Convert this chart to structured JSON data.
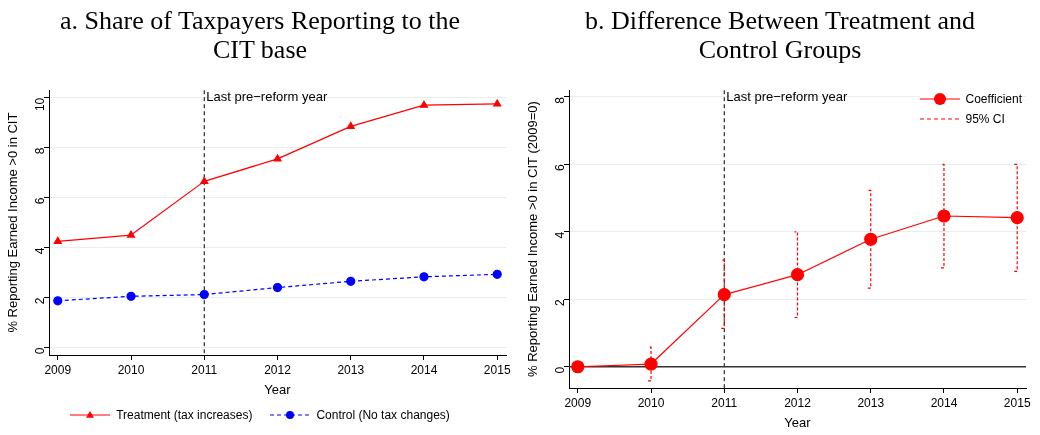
{
  "chart_data": [
    {
      "type": "line",
      "title": "a. Share of Taxpayers Reporting to the CIT base",
      "xlabel": "Year",
      "ylabel": "% Reporting Earned Income >0 in CIT",
      "x": [
        2009,
        2010,
        2011,
        2012,
        2013,
        2014,
        2015
      ],
      "series": [
        {
          "name": "Treatment (tax increases)",
          "color": "#ff0000",
          "values": [
            4.25,
            4.5,
            6.65,
            7.55,
            8.85,
            9.7,
            9.75
          ],
          "marker": "triangle",
          "line_style": "solid"
        },
        {
          "name": "Control (No tax changes)",
          "color": "#0000ff",
          "values": [
            1.87,
            2.05,
            2.12,
            2.4,
            2.65,
            2.83,
            2.93
          ],
          "marker": "circle",
          "line_style": "dashed"
        }
      ],
      "xlim": [
        2008.88,
        2015.12
      ],
      "xticks": [
        2009,
        2010,
        2011,
        2012,
        2013,
        2014,
        2015
      ],
      "ylim": [
        -0.3,
        10.3
      ],
      "yticks": [
        0,
        2,
        4,
        6,
        8,
        10
      ],
      "grid": "y",
      "legend": "bottom",
      "ref_lines": [
        {
          "axis": "x",
          "value": 2011,
          "label": "Last pre−reform year",
          "color": "#000000",
          "line_style": "dashed"
        }
      ]
    },
    {
      "type": "line",
      "title": "b. Difference Between Treatment and Control Groups",
      "xlabel": "Year",
      "ylabel": "% Reporting Earned Income >0 in CIT (2009=0)",
      "x": [
        2009,
        2010,
        2011,
        2012,
        2013,
        2014,
        2015
      ],
      "series": [
        {
          "name": "Coefficient",
          "color": "#ff0000",
          "values": [
            0,
            0.08,
            2.14,
            2.73,
            3.78,
            4.47,
            4.42
          ],
          "marker": "circle",
          "line_style": "solid",
          "errors": [
            null,
            [
              -0.42,
              0.58
            ],
            [
              1.14,
              3.16
            ],
            [
              1.46,
              4.0
            ],
            [
              2.33,
              5.23
            ],
            [
              2.93,
              6.0
            ],
            [
              2.83,
              6.0
            ]
          ]
        }
      ],
      "annotations": [
        "95% CI"
      ],
      "xlim": [
        2008.88,
        2015.12
      ],
      "xticks": [
        2009,
        2010,
        2011,
        2012,
        2013,
        2014,
        2015
      ],
      "ylim": [
        -0.63,
        8.2
      ],
      "yticks": [
        0,
        2,
        4,
        6,
        8
      ],
      "grid": "y",
      "legend": "top right",
      "ref_lines": [
        {
          "axis": "x",
          "value": 2011,
          "label": "Last pre−reform year",
          "color": "#000000",
          "line_style": "dashed"
        },
        {
          "axis": "y",
          "value": 0,
          "color": "#333333",
          "line_style": "solid"
        }
      ]
    }
  ]
}
